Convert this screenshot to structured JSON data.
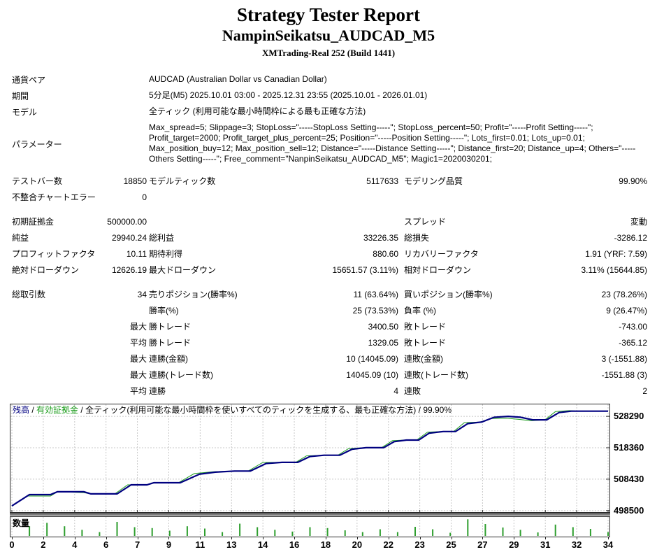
{
  "header": {
    "title": "Strategy Tester Report",
    "subtitle": "NampinSeikatsu_AUDCAD_M5",
    "build": "XMTrading-Real 252 (Build 1441)"
  },
  "report": {
    "info_rows": [
      {
        "label": "通貨ペア",
        "value": "AUDCAD (Australian Dollar vs Canadian Dollar)"
      },
      {
        "label": "期間",
        "value": "5分足(M5) 2025.10.01 03:00 - 2025.12.31 23:55 (2025.10.01 - 2026.01.01)"
      },
      {
        "label": "モデル",
        "value": "全ティック (利用可能な最小時間枠による最も正確な方法)"
      },
      {
        "label": "パラメーター",
        "value": "Max_spread=5; Slippage=3; StopLoss=\"-----StopLoss Setting-----\"; StopLoss_percent=50; Profit=\"-----Profit Setting-----\"; Profit_target=2000; Profit_target_plus_percent=25; Position=\"-----Position Setting-----\"; Lots_first=0.01; Lots_up=0.01; Max_position_buy=12; Max_position_sell=12; Distance=\"-----Distance Setting-----\"; Distance_first=20; Distance_up=4; Others=\"-----Others Setting-----\"; Free_comment=\"NanpinSeikatsu_AUDCAD_M5\"; Magic1=2020030201;",
        "multiline": true
      }
    ],
    "rows": [
      {
        "l1": "テストバー数",
        "v1": "18850",
        "l2": "モデルティック数",
        "v2": "5117633",
        "l3": "モデリング品質",
        "v3": "99.90%"
      },
      {
        "l1": "不整合チャートエラー",
        "v1": "0",
        "l2": "",
        "v2": "",
        "l3": "",
        "v3": ""
      },
      {
        "gap": true,
        "l1": "初期証拠金",
        "v1": "500000.00",
        "l2": "",
        "v2": "",
        "l3": "スプレッド",
        "v3": "変動"
      },
      {
        "l1": "純益",
        "v1": "29940.24",
        "l2": "総利益",
        "v2": "33226.35",
        "l3": "総損失",
        "v3": "-3286.12"
      },
      {
        "l1": "プロフィットファクタ",
        "v1": "10.11",
        "l2": "期待利得",
        "v2": "880.60",
        "l3": "リカバリーファクタ",
        "v3": "1.91 (YRF: 7.59)"
      },
      {
        "l1": "絶対ドローダウン",
        "v1": "12626.19",
        "l2": "最大ドローダウン",
        "v2": "15651.57 (3.11%)",
        "l3": "相対ドローダウン",
        "v3": "3.11% (15644.85)"
      },
      {
        "gap": true,
        "l1": "総取引数",
        "v1": "34",
        "l2": "売りポジション(勝率%)",
        "v2": "11 (63.64%)",
        "l3": "買いポジション(勝率%)",
        "v3": "23 (78.26%)"
      },
      {
        "l1": "",
        "v1": "",
        "l2": "勝率(%)",
        "v2": "25 (73.53%)",
        "l3": "負率 (%)",
        "v3": "9 (26.47%)"
      },
      {
        "l1": "",
        "v1": "最大",
        "l2": "勝トレード",
        "v2": "3400.50",
        "l3": "敗トレード",
        "v3": "-743.00"
      },
      {
        "l1": "",
        "v1": "平均",
        "l2": "勝トレード",
        "v2": "1329.05",
        "l3": "敗トレード",
        "v3": "-365.12"
      },
      {
        "l1": "",
        "v1": "最大",
        "l2": "連勝(金額)",
        "v2": "10 (14045.09)",
        "l3": "連敗(金額)",
        "v3": "3 (-1551.88)"
      },
      {
        "l1": "",
        "v1": "最大",
        "l2": "連勝(トレード数)",
        "v2": "14045.09 (10)",
        "l3": "連敗(トレード数)",
        "v3": "-1551.88 (3)"
      },
      {
        "l1": "",
        "v1": "平均",
        "l2": "連勝",
        "v2": "4",
        "l3": "連敗",
        "v3": "2"
      }
    ]
  },
  "chart_data": {
    "type": "line",
    "title": "",
    "legend": {
      "balance": "残高",
      "equity": "有効証拠金",
      "model": "全ティック(利用可能な最小時間枠を使いすべてのティックを生成する、最も正確な方法)",
      "quality": "99.90%",
      "sep": " / "
    },
    "legend_position": "top-left",
    "grid": true,
    "x_range": [
      0,
      34
    ],
    "x_ticks": [
      "0",
      "2",
      "4",
      "6",
      "7",
      "9",
      "11",
      "13",
      "14",
      "16",
      "18",
      "20",
      "22",
      "23",
      "25",
      "27",
      "29",
      "31",
      "32",
      "34"
    ],
    "y_range": [
      497800,
      532300
    ],
    "y_ticks": [
      528290,
      518360,
      508430,
      498500
    ],
    "colors": {
      "balance": "#000080",
      "equity": "#1e9e1e",
      "volume": "#2e9e2e",
      "grid": "#c8c8c8",
      "border": "#2b2b2b"
    },
    "series": [
      {
        "name": "残高",
        "color": "#000080",
        "points": [
          [
            0,
            500000
          ],
          [
            1,
            503550
          ],
          [
            2.2,
            503550
          ],
          [
            2.6,
            504450
          ],
          [
            4.1,
            504450
          ],
          [
            4.5,
            503800
          ],
          [
            6,
            503800
          ],
          [
            6.8,
            506650
          ],
          [
            7.7,
            506650
          ],
          [
            8.1,
            507300
          ],
          [
            9.6,
            507300
          ],
          [
            10.7,
            510000
          ],
          [
            11.6,
            510650
          ],
          [
            12.7,
            511000
          ],
          [
            13.6,
            511000
          ],
          [
            14.5,
            513400
          ],
          [
            15.4,
            513750
          ],
          [
            16.3,
            513750
          ],
          [
            17,
            515600
          ],
          [
            17.8,
            516000
          ],
          [
            18.7,
            516000
          ],
          [
            19.4,
            517900
          ],
          [
            20.2,
            518400
          ],
          [
            21.2,
            518400
          ],
          [
            21.8,
            520300
          ],
          [
            22.5,
            520800
          ],
          [
            23.2,
            520800
          ],
          [
            23.8,
            523000
          ],
          [
            24.6,
            523500
          ],
          [
            25.3,
            523500
          ],
          [
            26,
            526000
          ],
          [
            26.8,
            526500
          ],
          [
            27.5,
            528000
          ],
          [
            28.3,
            528300
          ],
          [
            29,
            528000
          ],
          [
            29.7,
            527200
          ],
          [
            30.5,
            527200
          ],
          [
            31.2,
            529500
          ],
          [
            31.9,
            529940
          ],
          [
            34,
            529940
          ]
        ]
      },
      {
        "name": "有効証拠金",
        "color": "#1e9e1e",
        "points": [
          [
            0,
            500000
          ],
          [
            0.9,
            503100
          ],
          [
            2.2,
            503100
          ],
          [
            2.6,
            504450
          ],
          [
            4.1,
            504200
          ],
          [
            4.5,
            503800
          ],
          [
            5.9,
            503900
          ],
          [
            6.6,
            506650
          ],
          [
            7.7,
            506650
          ],
          [
            8,
            507300
          ],
          [
            9.5,
            507300
          ],
          [
            10.4,
            510200
          ],
          [
            11.5,
            510800
          ],
          [
            12.6,
            511000
          ],
          [
            13.5,
            511100
          ],
          [
            14.3,
            513700
          ],
          [
            15.3,
            513750
          ],
          [
            16.2,
            513800
          ],
          [
            16.8,
            515800
          ],
          [
            17.7,
            516000
          ],
          [
            18.6,
            516050
          ],
          [
            19.2,
            518100
          ],
          [
            20.1,
            518400
          ],
          [
            21.1,
            518450
          ],
          [
            21.7,
            520600
          ],
          [
            22.4,
            520800
          ],
          [
            23.1,
            520850
          ],
          [
            23.7,
            523300
          ],
          [
            24.5,
            523500
          ],
          [
            25.2,
            523550
          ],
          [
            25.8,
            526300
          ],
          [
            26.7,
            526500
          ],
          [
            27.3,
            527600
          ],
          [
            28.2,
            527700
          ],
          [
            29,
            527300
          ],
          [
            29.6,
            526900
          ],
          [
            30.4,
            527200
          ],
          [
            31,
            529800
          ],
          [
            31.8,
            530100
          ],
          [
            32.3,
            529940
          ],
          [
            34,
            529940
          ]
        ]
      }
    ],
    "volume": {
      "label": "数量",
      "color": "#2e9e2e",
      "bars": [
        0.55,
        0.75,
        0.55,
        0.35,
        0.22,
        0.8,
        0.5,
        0.45,
        0.3,
        0.55,
        0.42,
        0.22,
        0.7,
        0.5,
        0.35,
        0.25,
        0.5,
        0.45,
        0.32,
        0.22,
        0.38,
        0.22,
        0.52,
        0.38,
        0.18,
        0.95,
        0.68,
        0.48,
        0.35,
        0.2,
        0.65,
        0.5,
        0.4,
        0.22
      ]
    }
  }
}
